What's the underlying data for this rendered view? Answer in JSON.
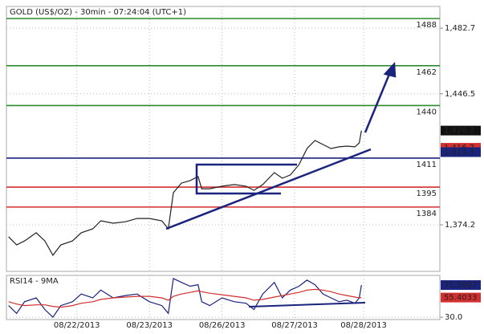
{
  "chart_data": [
    {
      "type": "line",
      "title": "GOLD (US$/OZ) - 30min - 07:24:04 (UTC+1)",
      "x": [
        0.06,
        0.17,
        0.28,
        0.44,
        0.56,
        0.67,
        0.78,
        0.94,
        1.06,
        1.22,
        1.33,
        1.5,
        1.67,
        1.83,
        2.0,
        2.17,
        2.26,
        2.33,
        2.44,
        2.56,
        2.67,
        2.72,
        2.83,
        3.0,
        3.17,
        3.33,
        3.44,
        3.56,
        3.72,
        3.83,
        3.94,
        4.06,
        4.17,
        4.28,
        4.39,
        4.5,
        4.61,
        4.72,
        4.83,
        4.89,
        4.92
      ],
      "series": [
        {
          "color": "#222222",
          "values": [
            1367.6,
            1363.1,
            1365.3,
            1369.8,
            1365.3,
            1357.4,
            1363.1,
            1365.3,
            1369.8,
            1372.0,
            1376.4,
            1375.1,
            1375.9,
            1377.7,
            1377.7,
            1376.4,
            1372.0,
            1391.9,
            1397.2,
            1398.6,
            1400.8,
            1394.1,
            1394.1,
            1395.5,
            1396.4,
            1395.5,
            1393.2,
            1396.4,
            1403.0,
            1399.9,
            1401.7,
            1407.4,
            1416.3,
            1420.7,
            1418.5,
            1416.3,
            1417.2,
            1417.6,
            1417.2,
            1419.4,
            1426.2
          ]
        }
      ],
      "xlim": [
        0.03,
        6.0
      ],
      "xticks": [
        {
          "value": 1,
          "label": "08/22/2013"
        },
        {
          "value": 2,
          "label": "08/23/2013"
        },
        {
          "value": 3,
          "label": "08/26/2013"
        },
        {
          "value": 4,
          "label": "08/27/2013"
        },
        {
          "value": 4.95,
          "label": "08/28/2013"
        }
      ],
      "ylim": [
        1348.5,
        1494.7
      ],
      "yticks": [
        {
          "value": 1374.2,
          "label": "1,374.2"
        },
        {
          "value": 1446.5,
          "label": "1,446.5"
        },
        {
          "value": 1482.7,
          "label": "1,482.7"
        }
      ],
      "levels": [
        {
          "value": 1488,
          "color": "#2e8b2e"
        },
        {
          "value": 1462,
          "color": "#2e8b2e"
        },
        {
          "value": 1440,
          "color": "#2e8b2e"
        },
        {
          "value": 1411,
          "color": "#1a237e"
        },
        {
          "value": 1395,
          "color": "#d32f2f"
        },
        {
          "value": 1384,
          "color": "#d32f2f"
        }
      ],
      "price_tags": [
        {
          "value": 1426.2,
          "label": "1,426.2",
          "color": "#111111"
        },
        {
          "value": 1416.7,
          "label": "1,416.7",
          "color": "#d32f2f"
        },
        {
          "value": 1414.3,
          "label": "1,414.3",
          "color": "#1a237e"
        }
      ],
      "grid": true
    },
    {
      "type": "line",
      "title": "RSI14 - 9MA",
      "x": [
        0.06,
        0.17,
        0.28,
        0.44,
        0.56,
        0.67,
        0.78,
        0.94,
        1.06,
        1.22,
        1.33,
        1.5,
        1.67,
        1.83,
        2.0,
        2.17,
        2.26,
        2.33,
        2.44,
        2.56,
        2.67,
        2.72,
        2.83,
        3.0,
        3.17,
        3.33,
        3.44,
        3.56,
        3.72,
        3.83,
        3.94,
        4.06,
        4.17,
        4.28,
        4.39,
        4.5,
        4.61,
        4.72,
        4.83,
        4.89,
        4.92
      ],
      "series": [
        {
          "color": "#1a237e",
          "values": [
            45,
            35,
            50,
            55,
            40,
            30,
            45,
            50,
            60,
            55,
            65,
            55,
            58,
            60,
            50,
            45,
            35,
            80,
            75,
            70,
            72,
            50,
            45,
            55,
            50,
            48,
            40,
            60,
            75,
            55,
            65,
            70,
            78,
            72,
            60,
            55,
            50,
            52,
            48,
            55,
            71.5097
          ]
        },
        {
          "color": "#d32f2f",
          "values": [
            50,
            47,
            45,
            46,
            46,
            44,
            43,
            45,
            48,
            50,
            53,
            55,
            56,
            57,
            57,
            55,
            52,
            57,
            60,
            62,
            64,
            63,
            61,
            59,
            57,
            55,
            52,
            53,
            56,
            58,
            60,
            62,
            65,
            66,
            65,
            63,
            60,
            58,
            56,
            55,
            55.4033
          ]
        }
      ],
      "xlim": [
        0.03,
        6.0
      ],
      "ylim": [
        27,
        84
      ],
      "yticks": [
        {
          "value": 30,
          "label": "30.0"
        }
      ],
      "price_tags": [
        {
          "value": 71.5097,
          "color": "#1a237e"
        },
        {
          "value": 55.4033,
          "color": "#d32f2f"
        }
      ],
      "grid": true
    }
  ]
}
